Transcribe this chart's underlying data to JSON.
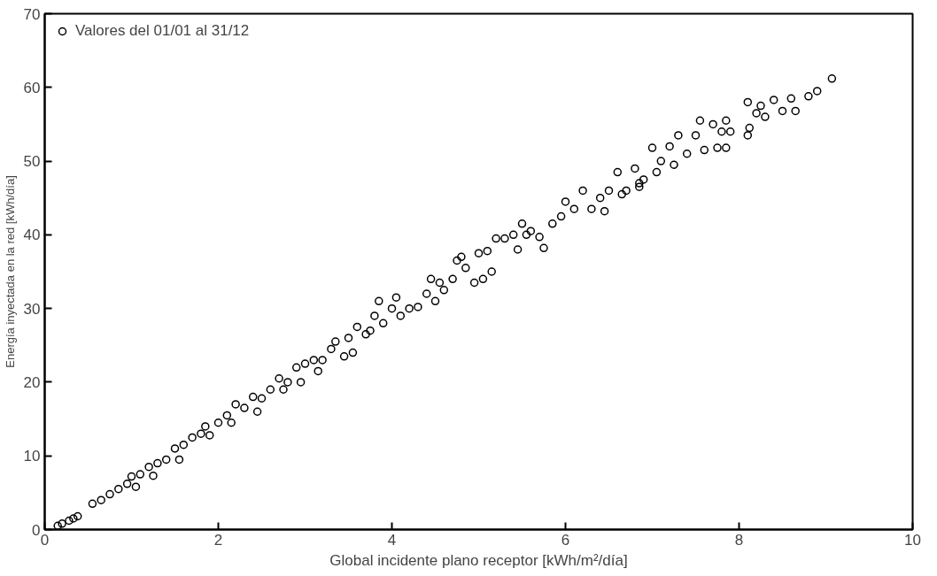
{
  "chart_data": {
    "type": "scatter",
    "xlabel": "Global incidente plano receptor [kWh/m²/día]",
    "ylabel": "Energía inyectada en la red [kWh/día]",
    "xlim": [
      0,
      10
    ],
    "ylim": [
      0,
      70
    ],
    "xticks": [
      0,
      2,
      4,
      6,
      8,
      10
    ],
    "yticks": [
      0,
      10,
      20,
      30,
      40,
      50,
      60,
      70
    ],
    "grid": false,
    "legend": "top left",
    "marker": "circle",
    "series": [
      {
        "name": "Valores del 01/01 al 31/12",
        "color": "#000000",
        "x": [
          0.15,
          0.2,
          0.28,
          0.33,
          0.38,
          0.55,
          0.65,
          0.75,
          0.85,
          0.95,
          1.0,
          1.05,
          1.1,
          1.2,
          1.25,
          1.3,
          1.4,
          1.5,
          1.55,
          1.6,
          1.7,
          1.8,
          1.85,
          1.9,
          2.0,
          2.1,
          2.15,
          2.2,
          2.3,
          2.4,
          2.45,
          2.5,
          2.6,
          2.7,
          2.75,
          2.8,
          2.9,
          2.95,
          3.0,
          3.1,
          3.15,
          3.2,
          3.3,
          3.35,
          3.45,
          3.5,
          3.55,
          3.6,
          3.7,
          3.75,
          3.8,
          3.85,
          3.9,
          4.0,
          4.05,
          4.1,
          4.2,
          4.3,
          4.4,
          4.45,
          4.5,
          4.55,
          4.6,
          4.7,
          4.75,
          4.8,
          4.85,
          4.95,
          5.0,
          5.05,
          5.1,
          5.15,
          5.2,
          5.3,
          5.4,
          5.45,
          5.5,
          5.55,
          5.6,
          5.7,
          5.75,
          5.85,
          5.95,
          6.0,
          6.1,
          6.2,
          6.3,
          6.4,
          6.45,
          6.5,
          6.6,
          6.65,
          6.7,
          6.8,
          6.85,
          6.9,
          7.0,
          7.05,
          7.1,
          7.2,
          7.25,
          7.3,
          7.4,
          7.5,
          7.55,
          7.6,
          7.7,
          7.75,
          7.8,
          7.85,
          7.9,
          8.1,
          8.12,
          8.2,
          8.25,
          8.3,
          8.4,
          8.5,
          8.6,
          8.65,
          8.8,
          8.9,
          9.07,
          6.85,
          7.85,
          8.1
        ],
        "values": [
          0.5,
          0.8,
          1.2,
          1.5,
          1.8,
          3.5,
          4,
          4.8,
          5.5,
          6.2,
          7.2,
          5.8,
          7.5,
          8.5,
          7.3,
          9,
          9.5,
          11,
          9.5,
          11.5,
          12.5,
          13,
          14,
          12.8,
          14.5,
          15.5,
          14.5,
          17,
          16.5,
          18,
          16,
          17.8,
          19,
          20.5,
          19,
          20,
          22,
          20,
          22.5,
          23,
          21.5,
          23,
          24.5,
          25.5,
          23.5,
          26,
          24,
          27.5,
          26.5,
          27,
          29,
          31,
          28,
          30,
          31.5,
          29,
          30,
          30.2,
          32,
          34,
          31,
          33.5,
          32.5,
          34,
          36.5,
          37,
          35.5,
          33.5,
          37.5,
          34,
          37.8,
          35,
          39.5,
          39.5,
          40,
          38,
          41.5,
          40,
          40.5,
          39.7,
          38.2,
          41.5,
          42.5,
          44.5,
          43.5,
          46,
          43.5,
          45,
          43.2,
          46,
          48.5,
          45.5,
          46,
          49,
          47,
          47.5,
          51.8,
          48.5,
          50,
          52,
          49.5,
          53.5,
          51,
          53.5,
          55.5,
          51.5,
          55,
          51.8,
          54,
          55.5,
          54,
          58,
          54.5,
          56.5,
          57.5,
          56,
          58.3,
          56.8,
          58.5,
          56.8,
          58.8,
          59.5,
          61.2,
          46.5,
          51.8,
          53.5
        ]
      }
    ]
  }
}
